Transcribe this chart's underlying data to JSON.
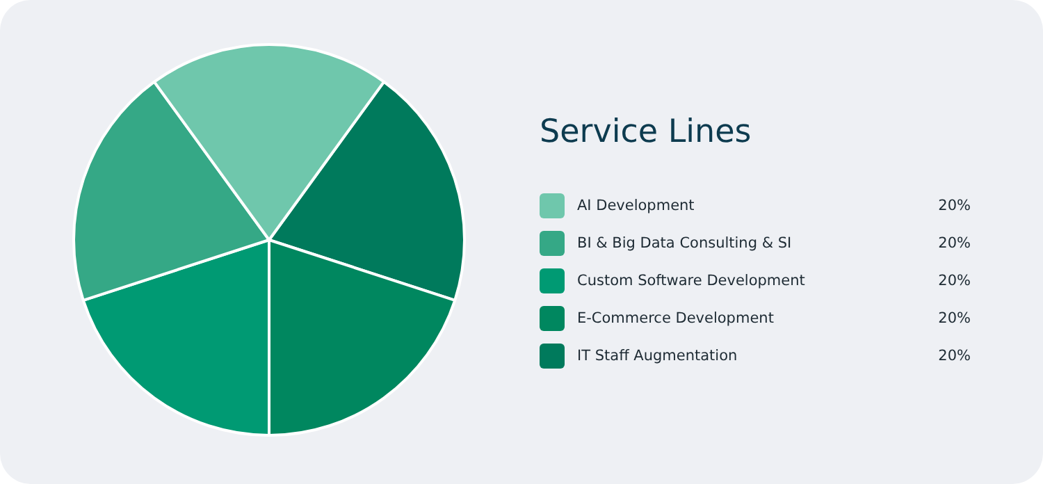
{
  "chart_data": {
    "type": "pie",
    "title": "Service Lines",
    "categories": [
      "AI Development",
      "BI & Big Data Consulting & SI",
      "Custom Software Development",
      "E-Commerce Development",
      "IT Staff Augmentation"
    ],
    "values": [
      20,
      20,
      20,
      20,
      20
    ],
    "colors": [
      "#6fc7ac",
      "#35a886",
      "#009a73",
      "#00875f",
      "#007a5c"
    ],
    "value_labels": [
      "20%",
      "20%",
      "20%",
      "20%",
      "20%"
    ],
    "legend": "right"
  }
}
